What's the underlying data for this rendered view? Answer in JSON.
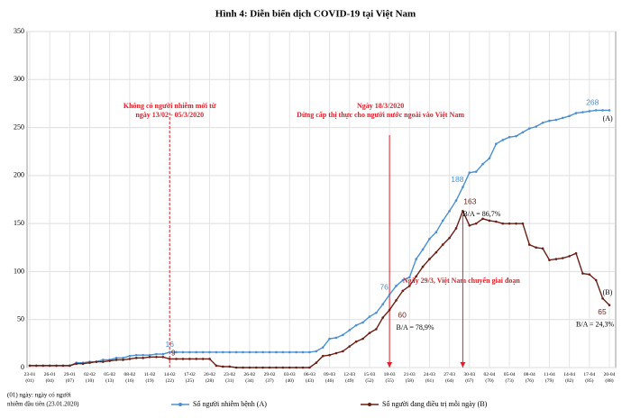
{
  "chart_data": {
    "type": "line",
    "title": "Hình 4: Diễn biến dịch COVID-19 tại Việt Nam",
    "categories": [
      "23-01 (01)",
      null,
      null,
      "26-01 (04)",
      null,
      null,
      "29-01 (07)",
      null,
      null,
      "02-02 (10)",
      null,
      null,
      "05-02 (13)",
      null,
      null,
      "08-02 (16)",
      null,
      null,
      "11-02 (19)",
      null,
      null,
      "14-02 (22)",
      null,
      null,
      "17-02 (25)",
      null,
      null,
      "20-02 (28)",
      null,
      null,
      "23-02 (31)",
      null,
      null,
      "26-02 (34)",
      null,
      null,
      "29-02 (37)",
      null,
      null,
      "03-03 (40)",
      null,
      null,
      "06-03 (43)",
      null,
      null,
      "09-03 (46)",
      null,
      null,
      "12-03 (49)",
      null,
      null,
      "15-03 (52)",
      null,
      null,
      "18-03 (55)",
      null,
      null,
      "21-03 (58)",
      null,
      null,
      "24-03 (61)",
      null,
      null,
      "27-03 (64)",
      null,
      null,
      "30-03 (67)",
      null,
      null,
      "02-04 (70)",
      null,
      null,
      "05-04 (73)",
      null,
      null,
      "08-04 (76)",
      null,
      null,
      "11-04 (79)",
      null,
      null,
      "14-04 (82)",
      null,
      null,
      "17-04 (85)",
      null,
      null,
      "20-04 (88)"
    ],
    "series": [
      {
        "name": "Số người nhiễm bệnh (A)",
        "color": "#4a90d0",
        "values": [
          2,
          2,
          2,
          2,
          2,
          2,
          2,
          5,
          5,
          6,
          6,
          8,
          8,
          10,
          10,
          12,
          13,
          13,
          13,
          14,
          14,
          16,
          16,
          16,
          16,
          16,
          16,
          16,
          16,
          16,
          16,
          16,
          16,
          16,
          16,
          16,
          16,
          16,
          16,
          16,
          16,
          16,
          16,
          17,
          21,
          30,
          31,
          34,
          39,
          44,
          47,
          53,
          57,
          66,
          76,
          85,
          91,
          94,
          113,
          123,
          134,
          141,
          153,
          163,
          174,
          188,
          203,
          204,
          212,
          218,
          233,
          237,
          240,
          241,
          245,
          249,
          251,
          255,
          257,
          258,
          260,
          262,
          265,
          266,
          267,
          268,
          268,
          268
        ]
      },
      {
        "name": "Số người đang điều trị mỗi ngày (B)",
        "color": "#6b1f14",
        "values": [
          2,
          2,
          2,
          2,
          2,
          2,
          2,
          4,
          4,
          5,
          6,
          6,
          7,
          8,
          8,
          9,
          10,
          10,
          11,
          11,
          11,
          9,
          9,
          9,
          9,
          9,
          9,
          9,
          2,
          1,
          1,
          0,
          0,
          0,
          0,
          0,
          0,
          0,
          0,
          0,
          0,
          0,
          0,
          5,
          12,
          13,
          15,
          17,
          22,
          27,
          30,
          36,
          40,
          52,
          60,
          70,
          80,
          85,
          95,
          105,
          113,
          120,
          128,
          135,
          145,
          163,
          148,
          150,
          155,
          153,
          152,
          150,
          150,
          150,
          150,
          128,
          125,
          124,
          112,
          113,
          114,
          116,
          119,
          98,
          97,
          91,
          72,
          65
        ]
      }
    ],
    "ylim": [
      0,
      350
    ],
    "yticks": [
      0,
      50,
      100,
      150,
      200,
      250,
      300,
      350
    ],
    "grid": true,
    "annotations": [
      "Không có người nhiễm mới từ",
      "ngày 13/02 - 05/3/2020",
      "Ngày 18/3/2020",
      "Dừng cấp thị thực cho người nước ngoài vào Việt Nam",
      "Ngày 29/3, Việt Nam chuyển giai đoạn",
      "B/A = 78,9%",
      "B/A = 86,7%",
      "B/A = 24,3%",
      "(A)",
      "(B)"
    ],
    "footnote": [
      "(01) ngày: ngày có người",
      "nhiễm đầu tiên (23.01.2020)"
    ]
  }
}
